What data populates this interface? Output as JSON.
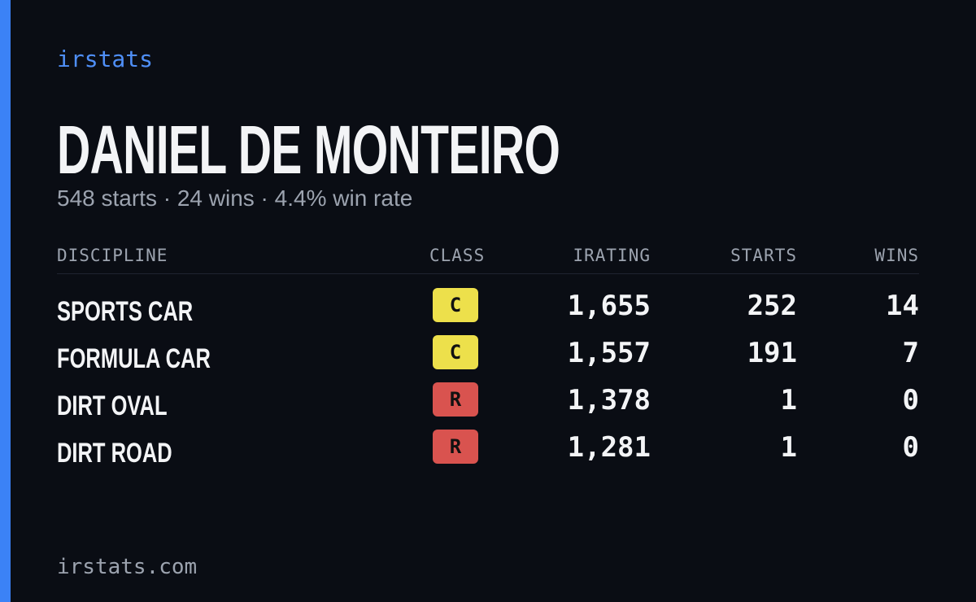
{
  "brand": "irstats",
  "driver": {
    "name": "DANIEL DE MONTEIRO",
    "summary": "548 starts · 24 wins · 4.4% win rate"
  },
  "table": {
    "headers": [
      "DISCIPLINE",
      "CLASS",
      "IRATING",
      "STARTS",
      "WINS"
    ],
    "rows": [
      [
        "SPORTS CAR",
        "C",
        "1,655",
        252,
        14
      ],
      [
        "FORMULA CAR",
        "C",
        "1,557",
        191,
        7
      ],
      [
        "DIRT OVAL",
        "R",
        "1,378",
        1,
        0
      ],
      [
        "DIRT ROAD",
        "R",
        "1,281",
        1,
        0
      ]
    ],
    "class_colors": [
      "#ede04b",
      "#ede04b",
      "#d9534f",
      "#d9534f"
    ]
  },
  "footer": "irstats.com"
}
